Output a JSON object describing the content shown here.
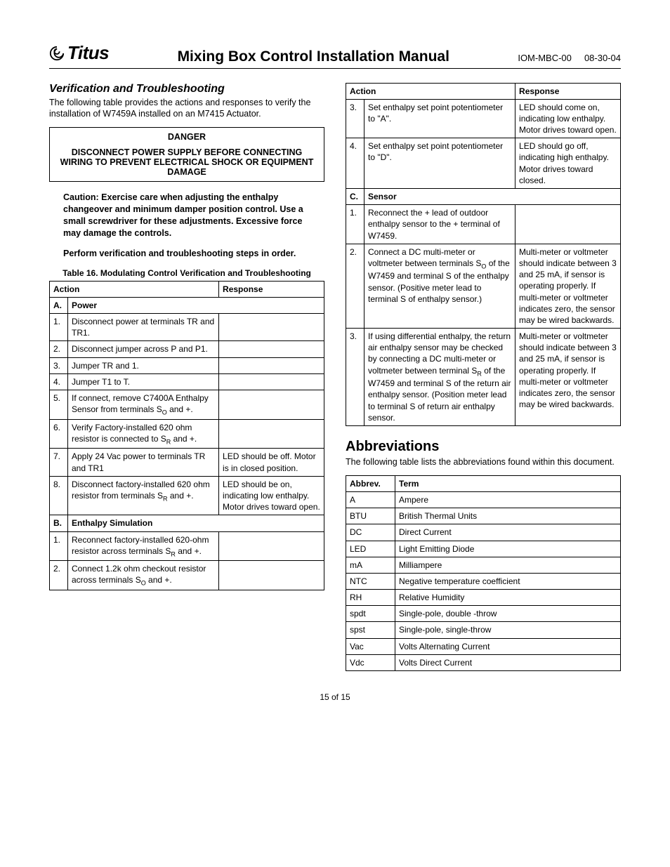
{
  "header": {
    "brand": "Titus",
    "title": "Mixing Box Control Installation Manual",
    "doc_id": "IOM-MBC-00",
    "date": "08-30-04"
  },
  "section_verif": {
    "heading": "Verification and Troubleshooting",
    "intro": "The following table provides the actions and responses to verify the installation of W7459A installed on an M7415 Actuator.",
    "danger_title": "DANGER",
    "danger_body": "DISCONNECT POWER SUPPLY BEFORE CONNECTING WIRING TO PREVENT ELECTRICAL SHOCK OR EQUIPMENT DAMAGE",
    "caution1": "Caution: Exercise care when adjusting the enthalpy changeover and minimum damper position control. Use a small screwdriver for these adjustments. Excessive force may damage the controls.",
    "caution2": "Perform verification and troubleshooting steps in order.",
    "table_caption": "Table 16. Modulating Control Verification and Troubleshooting",
    "th_action": "Action",
    "th_response": "Response"
  },
  "verif_table": {
    "sections": [
      {
        "letter": "A.",
        "label": "Power",
        "rows": [
          {
            "n": "1.",
            "action": "Disconnect power at terminals TR and TR1.",
            "response": ""
          },
          {
            "n": "2.",
            "action": "Disconnect jumper across P and P1.",
            "response": ""
          },
          {
            "n": "3.",
            "action": "Jumper TR and 1.",
            "response": ""
          },
          {
            "n": "4.",
            "action": "Jumper T1 to T.",
            "response": ""
          },
          {
            "n": "5.",
            "action_html": "If connect, remove C7400A Enthalpy Sensor from terminals S<sub>O</sub> and +.",
            "response": ""
          },
          {
            "n": "6.",
            "action_html": "Verify Factory-installed 620 ohm resistor is connected to S<sub>R</sub> and +.",
            "response": ""
          },
          {
            "n": "7.",
            "action": "Apply 24 Vac power to terminals TR and TR1",
            "response": "LED should be off. Motor is in closed position."
          },
          {
            "n": "8.",
            "action_html": "Disconnect factory-installed 620 ohm resistor from terminals S<sub>R</sub> and +.",
            "response": "LED should be on, indicating low enthalpy. Motor drives toward open."
          }
        ]
      },
      {
        "letter": "B.",
        "label": "Enthalpy Simulation",
        "rows": [
          {
            "n": "1.",
            "action_html": "Reconnect factory-installed 620-ohm resistor across terminals S<sub>R</sub> and +.",
            "response": ""
          },
          {
            "n": "2.",
            "action_html": "Connect 1.2k ohm checkout resistor across terminals S<sub>O</sub> and +.",
            "response": ""
          }
        ]
      }
    ]
  },
  "verif_table_cont": {
    "rows_top": [
      {
        "n": "3.",
        "action": "Set enthalpy set point potentiometer to \"A\".",
        "response": "LED should come on, indicating low enthalpy. Motor drives toward open."
      },
      {
        "n": "4.",
        "action": "Set enthalpy set point potentiometer to \"D\".",
        "response": "LED should go off, indicating high enthalpy. Motor drives toward closed."
      }
    ],
    "section": {
      "letter": "C.",
      "label": "Sensor"
    },
    "rows_c": [
      {
        "n": "1.",
        "action": "Reconnect the + lead of outdoor enthalpy sensor to the + terminal of W7459.",
        "response": ""
      },
      {
        "n": "2.",
        "action_html": "Connect a DC multi-meter or voltmeter between terminals S<sub>O</sub> of the W7459 and terminal S of the enthalpy sensor. (Positive meter lead to terminal S of enthalpy sensor.)",
        "response": "Multi-meter or voltmeter should indicate between 3 and 25 mA, if sensor is operating properly. If multi-meter or voltmeter indicates zero, the sensor may be wired backwards."
      },
      {
        "n": "3.",
        "action_html": "If using differential enthalpy, the return air enthalpy sensor may be checked by connecting a DC multi-meter or voltmeter between terminal S<sub>R</sub> of the W7459 and terminal S of the return air enthalpy sensor. (Position meter lead to terminal S of return air enthalpy sensor.",
        "response": "Multi-meter or voltmeter should indicate between 3 and 25 mA, if sensor is operating properly. If multi-meter or voltmeter indicates zero, the sensor may be wired backwards."
      }
    ]
  },
  "abbr_section": {
    "heading": "Abbreviations",
    "intro": "The following table lists the abbreviations found within this document.",
    "th_abbr": "Abbrev.",
    "th_term": "Term",
    "rows": [
      {
        "a": "A",
        "t": "Ampere"
      },
      {
        "a": "BTU",
        "t": "British Thermal Units"
      },
      {
        "a": "DC",
        "t": "Direct Current"
      },
      {
        "a": "LED",
        "t": "Light Emitting Diode"
      },
      {
        "a": "mA",
        "t": "Milliampere"
      },
      {
        "a": "NTC",
        "t": "Negative temperature coefficient"
      },
      {
        "a": "RH",
        "t": "Relative Humidity"
      },
      {
        "a": "spdt",
        "t": "Single-pole, double -throw"
      },
      {
        "a": "spst",
        "t": "Single-pole, single-throw"
      },
      {
        "a": "Vac",
        "t": "Volts Alternating Current"
      },
      {
        "a": "Vdc",
        "t": "Volts Direct Current"
      }
    ]
  },
  "footer": "15 of 15"
}
